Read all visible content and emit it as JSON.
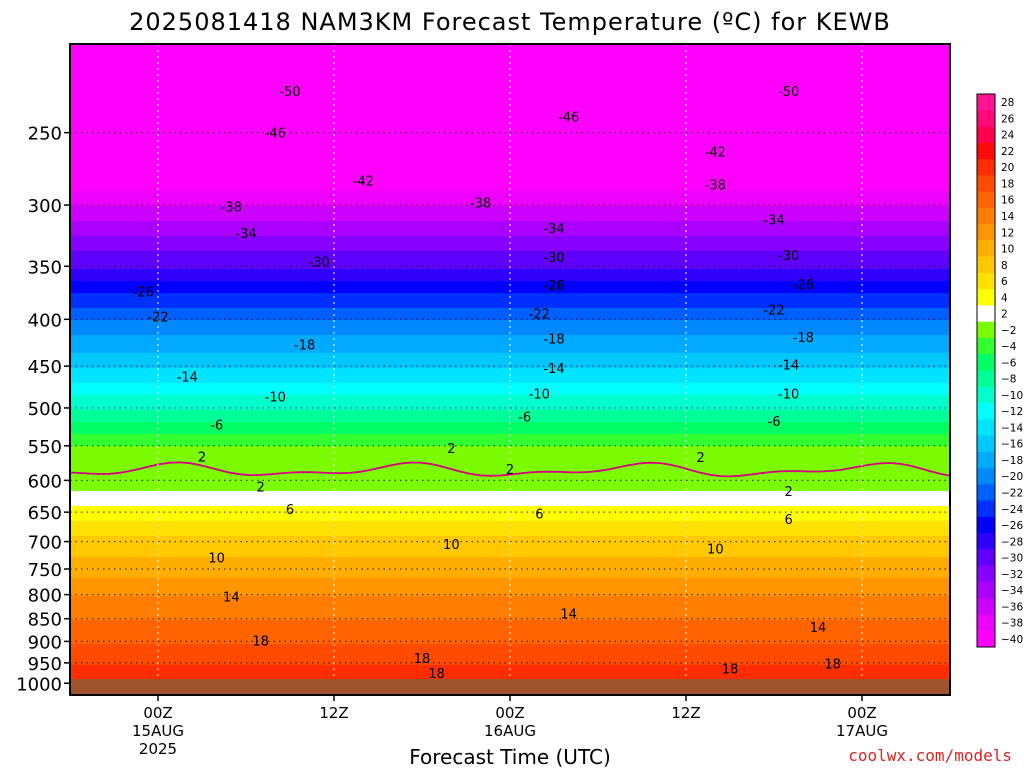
{
  "chart_data": {
    "type": "heatmap",
    "title": "2025081418 NAM3KM Forecast Temperature (ºC) for KEWB",
    "xlabel": "Forecast Time (UTC)",
    "ylabel": "",
    "credit": "coolwx.com/models",
    "x_ticks": [
      {
        "hour": 6,
        "lines": [
          "00Z",
          "15AUG",
          "2025"
        ]
      },
      {
        "hour": 18,
        "lines": [
          "12Z"
        ]
      },
      {
        "hour": 30,
        "lines": [
          "00Z",
          "16AUG"
        ]
      },
      {
        "hour": 42,
        "lines": [
          "12Z"
        ]
      },
      {
        "hour": 54,
        "lines": [
          "00Z",
          "17AUG"
        ]
      }
    ],
    "x_range_hours": [
      0,
      60
    ],
    "y_axis": "pressure (log scale, inverted)",
    "y_ticks": [
      250,
      300,
      350,
      400,
      450,
      500,
      550,
      600,
      650,
      700,
      750,
      800,
      850,
      900,
      950,
      1000
    ],
    "y_range": [
      200,
      1030
    ],
    "colorbar_levels": [
      28,
      26,
      24,
      22,
      20,
      18,
      16,
      14,
      12,
      10,
      8,
      6,
      4,
      2,
      -2,
      -4,
      -6,
      -8,
      -10,
      -12,
      -14,
      -16,
      -18,
      -20,
      -22,
      -24,
      -26,
      -28,
      -30,
      -32,
      -34,
      -36,
      -38,
      -40
    ],
    "colorbar_labels": [
      "28",
      "26",
      "24",
      "22",
      "20",
      "18",
      "16",
      "14",
      "12",
      "10",
      "8",
      "6",
      "4",
      "2",
      "−2",
      "−4",
      "−6",
      "−8",
      "−10",
      "−12",
      "−14",
      "−16",
      "−18",
      "−20",
      "−22",
      "−24",
      "−26",
      "−28",
      "−30",
      "−32",
      "−34",
      "−36",
      "−38",
      "−40"
    ],
    "contour_levels": [
      {
        "label": "-50",
        "positions": [
          [
            15,
            225
          ],
          [
            49,
            225
          ]
        ]
      },
      {
        "label": "-46",
        "positions": [
          [
            14,
            250
          ],
          [
            34,
            240
          ]
        ]
      },
      {
        "label": "-42",
        "positions": [
          [
            20,
            282
          ],
          [
            44,
            262
          ]
        ]
      },
      {
        "label": "-38",
        "positions": [
          [
            11,
            301
          ],
          [
            28,
            298
          ],
          [
            44,
            285
          ]
        ]
      },
      {
        "label": "-34",
        "positions": [
          [
            12,
            322
          ],
          [
            33,
            318
          ],
          [
            48,
            311
          ]
        ]
      },
      {
        "label": "-30",
        "positions": [
          [
            17,
            346
          ],
          [
            33,
            342
          ],
          [
            49,
            340
          ]
        ]
      },
      {
        "label": "-26",
        "positions": [
          [
            5,
            373
          ],
          [
            33,
            367
          ],
          [
            50,
            366
          ]
        ]
      },
      {
        "label": "-22",
        "positions": [
          [
            6,
            397
          ],
          [
            32,
            394
          ],
          [
            48,
            390
          ]
        ]
      },
      {
        "label": "-18",
        "positions": [
          [
            16,
            426
          ],
          [
            33,
            420
          ],
          [
            50,
            418
          ]
        ]
      },
      {
        "label": "-14",
        "positions": [
          [
            8,
            462
          ],
          [
            33,
            452
          ],
          [
            49,
            448
          ]
        ]
      },
      {
        "label": "-10",
        "positions": [
          [
            14,
            486
          ],
          [
            32,
            482
          ],
          [
            49,
            482
          ]
        ]
      },
      {
        "label": "-6",
        "positions": [
          [
            10,
            521
          ],
          [
            31,
            511
          ],
          [
            48,
            517
          ]
        ]
      },
      {
        "label": "2",
        "positions": [
          [
            9,
            565
          ],
          [
            26,
            553
          ],
          [
            43,
            566
          ]
        ]
      },
      {
        "label": "2",
        "positions": [
          [
            13,
            609
          ],
          [
            30,
            583
          ],
          [
            49,
            616
          ]
        ]
      },
      {
        "label": "6",
        "positions": [
          [
            15,
            645
          ],
          [
            32,
            652
          ],
          [
            49,
            661
          ]
        ]
      },
      {
        "label": "10",
        "positions": [
          [
            10,
            729
          ],
          [
            26,
            704
          ],
          [
            44,
            712
          ]
        ]
      },
      {
        "label": "14",
        "positions": [
          [
            11,
            804
          ],
          [
            34,
            839
          ],
          [
            51,
            868
          ]
        ]
      },
      {
        "label": "18",
        "positions": [
          [
            13,
            898
          ],
          [
            24,
            938
          ],
          [
            45,
            964
          ],
          [
            52,
            951
          ]
        ]
      },
      {
        "label": "18",
        "positions": [
          [
            25,
            975
          ]
        ]
      }
    ],
    "freezing_line_pressure": 585,
    "temperature_profile": [
      {
        "pressure": 200,
        "temp": -54
      },
      {
        "pressure": 250,
        "temp": -46
      },
      {
        "pressure": 300,
        "temp": -36
      },
      {
        "pressure": 350,
        "temp": -28
      },
      {
        "pressure": 400,
        "temp": -20
      },
      {
        "pressure": 450,
        "temp": -14
      },
      {
        "pressure": 500,
        "temp": -8
      },
      {
        "pressure": 550,
        "temp": -2
      },
      {
        "pressure": 585,
        "temp": 0
      },
      {
        "pressure": 600,
        "temp": 1
      },
      {
        "pressure": 650,
        "temp": 5
      },
      {
        "pressure": 700,
        "temp": 9
      },
      {
        "pressure": 750,
        "temp": 11
      },
      {
        "pressure": 800,
        "temp": 14
      },
      {
        "pressure": 850,
        "temp": 16
      },
      {
        "pressure": 900,
        "temp": 18
      },
      {
        "pressure": 950,
        "temp": 20
      },
      {
        "pressure": 1000,
        "temp": 22
      }
    ],
    "grid": true,
    "legend": "right colorbar"
  }
}
